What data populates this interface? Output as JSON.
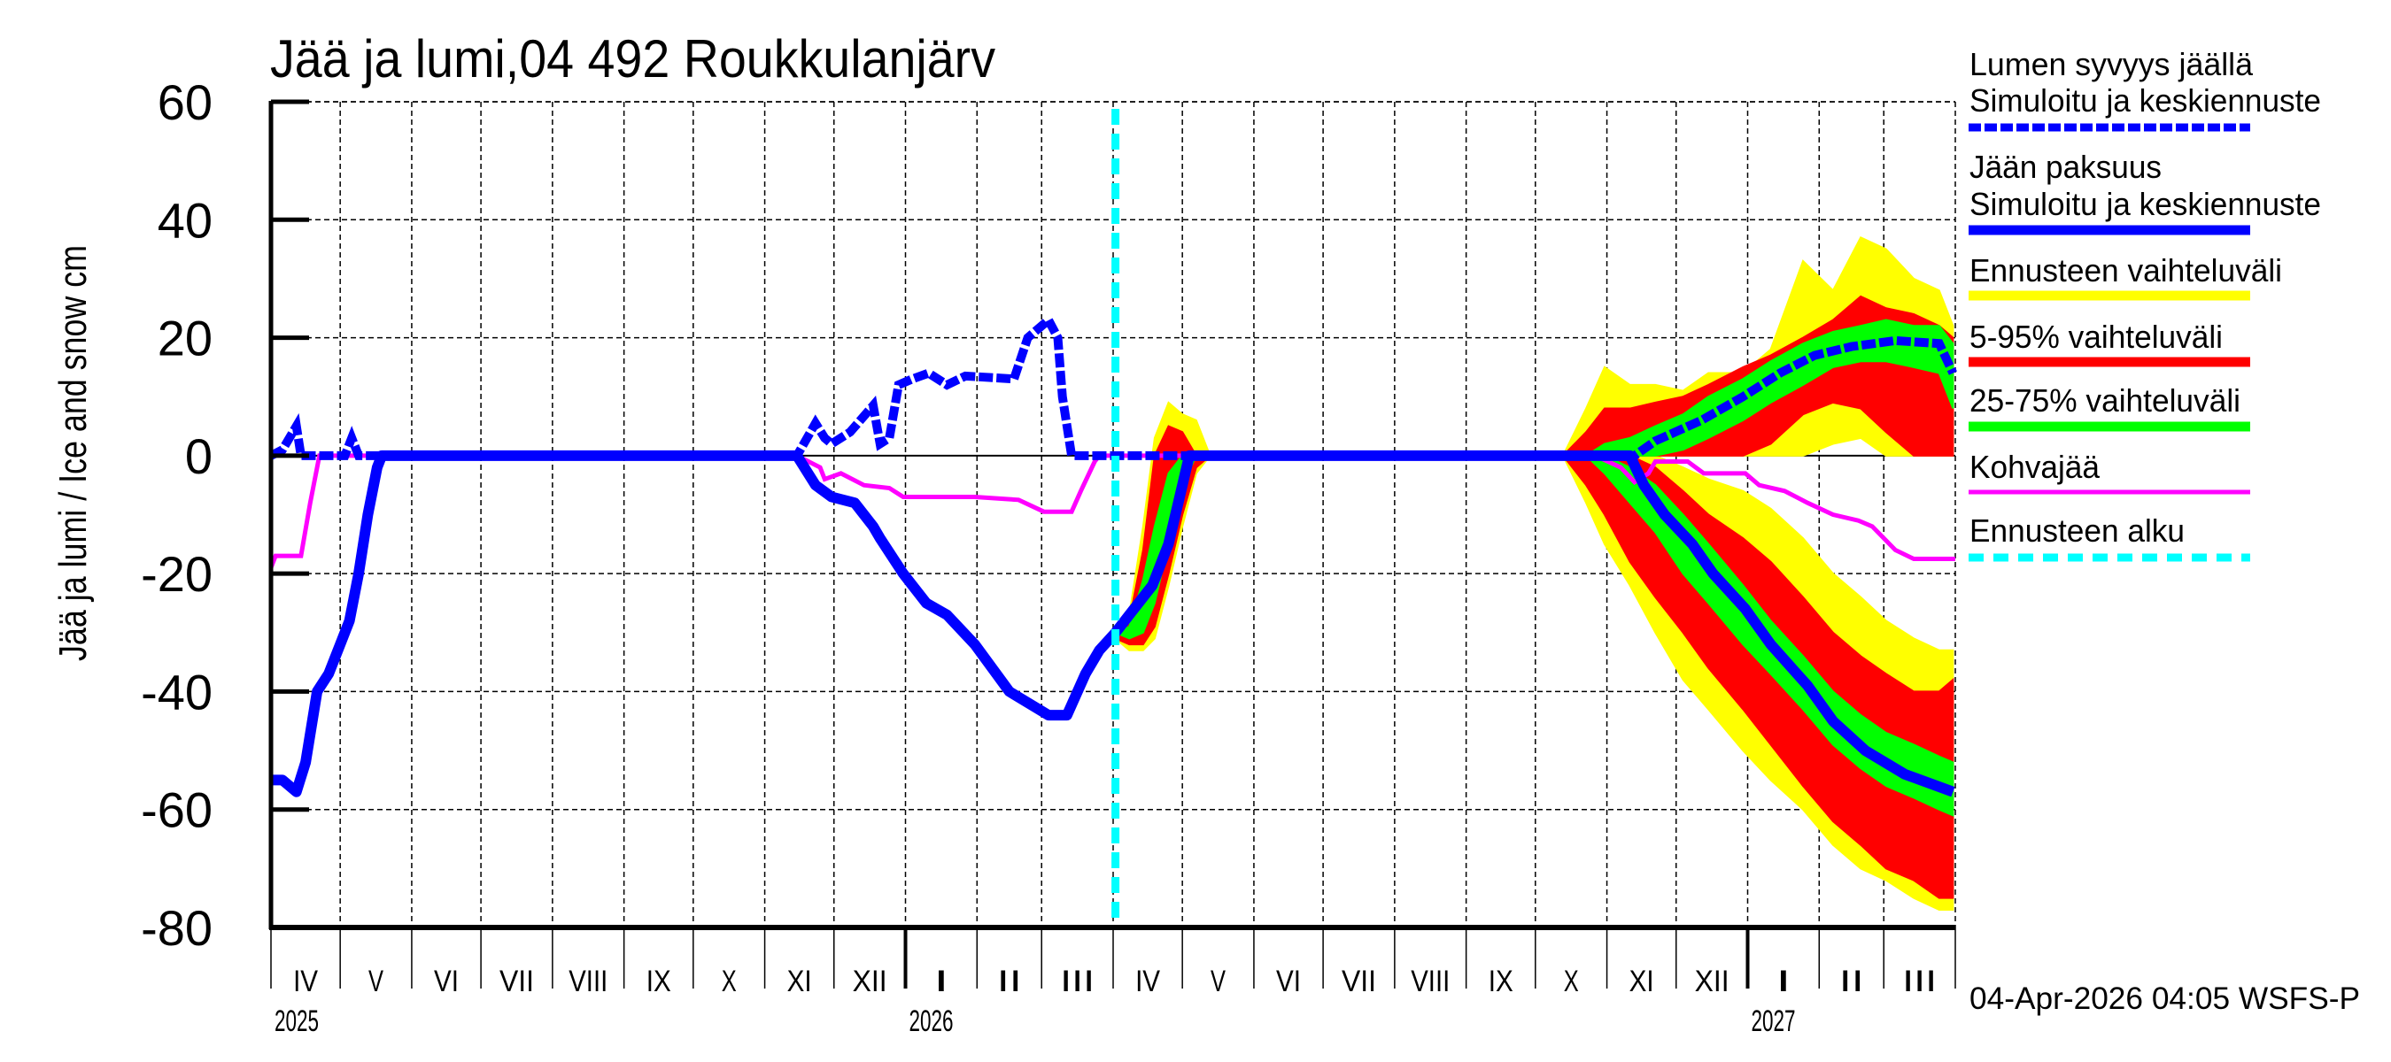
{
  "title": "Jää ja lumi,04 492 Roukkulanjärv",
  "y_axis_label": "Jää ja lumi / Ice and snow   cm",
  "timestamp": "04-Apr-2026 04:05 WSFS-P",
  "legend": [
    {
      "line1": "Lumen syvyys jäällä",
      "line2": "Simuloitu ja keskiennuste",
      "color": "#0000ff",
      "style": "dashed"
    },
    {
      "line1": "Jään paksuus",
      "line2": "Simuloitu ja keskiennuste",
      "color": "#0000ff",
      "style": "solid"
    },
    {
      "line1": "Ennusteen vaihteluväli",
      "color": "#ffff00",
      "style": "solid"
    },
    {
      "line1": "5-95% vaihteluväli",
      "color": "#ff0000",
      "style": "solid"
    },
    {
      "line1": "25-75% vaihteluväli",
      "color": "#00ff00",
      "style": "solid"
    },
    {
      "line1": "Kohvajää",
      "color": "#ff00ff",
      "style": "thin"
    },
    {
      "line1": "Ennusteen alku",
      "color": "#00ffff",
      "style": "dotted"
    }
  ],
  "colors": {
    "snow": "#0000ff",
    "ice": "#0000ff",
    "range_full": "#ffff00",
    "range_5_95": "#ff0000",
    "range_25_75": "#00ff00",
    "slush_ice": "#ff00ff",
    "forecast_start": "#00ffff"
  },
  "chart_data": {
    "type": "line",
    "title": "Jää ja lumi,04 492 Roukkulanjärv",
    "xlabel": "",
    "ylabel": "Jää ja lumi / Ice and snow   cm",
    "ylim": [
      -80,
      60
    ],
    "yticks": [
      60,
      40,
      20,
      0,
      -20,
      -40,
      -60,
      -80
    ],
    "grid": true,
    "legend_position": "right",
    "x_origin": "2025-04-01",
    "x_unit": "days since x_origin",
    "xlim": [
      0,
      730
    ],
    "forecast_start_day": 366,
    "month_ticks": [
      {
        "label": "IV",
        "days": 30
      },
      {
        "label": "V",
        "days": 31
      },
      {
        "label": "VI",
        "days": 30
      },
      {
        "label": "VII",
        "days": 31
      },
      {
        "label": "VIII",
        "days": 31
      },
      {
        "label": "IX",
        "days": 30
      },
      {
        "label": "X",
        "days": 31
      },
      {
        "label": "XI",
        "days": 30
      },
      {
        "label": "XII",
        "days": 31
      },
      {
        "label": "I",
        "days": 31
      },
      {
        "label": "II",
        "days": 28
      },
      {
        "label": "III",
        "days": 31
      },
      {
        "label": "IV",
        "days": 30
      },
      {
        "label": "V",
        "days": 31
      },
      {
        "label": "VI",
        "days": 30
      },
      {
        "label": "VII",
        "days": 31
      },
      {
        "label": "VIII",
        "days": 31
      },
      {
        "label": "IX",
        "days": 30
      },
      {
        "label": "X",
        "days": 31
      },
      {
        "label": "XI",
        "days": 30
      },
      {
        "label": "XII",
        "days": 31
      },
      {
        "label": "I",
        "days": 31
      },
      {
        "label": "II",
        "days": 28
      },
      {
        "label": "III",
        "days": 31
      }
    ],
    "year_labels": [
      {
        "label": "2025",
        "day": 0
      },
      {
        "label": "2026",
        "day": 275
      },
      {
        "label": "2027",
        "day": 640
      }
    ],
    "series": [
      {
        "name": "Lumen syvyys jäällä (Simuloitu ja keskiennuste)",
        "kind": "snow",
        "x": [
          0,
          5,
          11,
          13,
          32,
          35,
          38,
          228,
          236,
          240,
          243,
          251,
          261,
          264,
          268,
          272,
          278,
          285,
          293,
          301,
          322,
          328,
          337,
          341,
          343,
          347,
          591,
          600,
          620,
          638,
          654,
          669,
          685,
          704,
          723,
          729
        ],
        "y": [
          0,
          1,
          5,
          0,
          0,
          3,
          0,
          0,
          5.5,
          3,
          2,
          4,
          8.5,
          2,
          3,
          12,
          13,
          14,
          12,
          13.5,
          13,
          20,
          23,
          20,
          10,
          0,
          0,
          2.5,
          6,
          10,
          14,
          17,
          18.5,
          19.5,
          19,
          14
        ]
      },
      {
        "name": "Jään paksuus (Simuloitu ja keskiennuste)",
        "kind": "ice",
        "x": [
          0,
          5,
          11,
          15,
          20,
          25,
          30,
          34,
          38,
          42,
          46,
          48,
          228,
          236,
          243,
          253,
          261,
          264,
          274,
          284,
          293,
          305,
          320,
          337,
          345,
          353,
          359,
          366,
          372,
          382,
          389,
          395,
          398,
          589,
          595,
          604,
          616,
          625,
          639,
          650,
          666,
          677,
          691,
          708,
          729
        ],
        "y": [
          -55,
          -55,
          -57,
          -52,
          -40,
          -37,
          -32,
          -28,
          -20,
          -10,
          -2,
          0,
          0,
          -5,
          -7,
          -8,
          -12,
          -14,
          -20,
          -25,
          -27,
          -32,
          -40,
          -44,
          -44,
          -37,
          -33,
          -30,
          -27,
          -22,
          -15,
          -5,
          0,
          0,
          -5,
          -10,
          -15,
          -20,
          -26,
          -32,
          -39,
          -45,
          -50,
          -54,
          -57
        ]
      },
      {
        "name": "Kohvajää",
        "kind": "slush",
        "x": [
          0,
          2,
          13,
          17,
          21,
          228,
          238,
          240,
          247,
          257,
          268,
          274,
          305,
          324,
          335,
          347,
          351,
          357,
          359,
          574,
          585,
          591,
          597,
          600,
          614,
          621,
          639,
          645,
          656,
          666,
          677,
          688,
          694,
          704,
          712,
          730
        ],
        "y": [
          -19,
          -17,
          -17,
          -8,
          0,
          0,
          -2,
          -4,
          -3,
          -5,
          -5.5,
          -7,
          -7,
          -7.5,
          -9.5,
          -9.5,
          -6,
          -1,
          0,
          0,
          -2,
          -4.5,
          -3,
          -1,
          -1,
          -3,
          -3,
          -5,
          -6,
          -8,
          -10,
          -11,
          -12,
          -16,
          -17.5,
          -17.5
        ]
      }
    ],
    "bands": [
      {
        "name": "Ennusteen vaihteluväli",
        "color": "#ffff00",
        "segments": [
          {
            "x": [
              366,
              372,
              378,
              383,
              389,
              395,
              401,
              407
            ],
            "upper": [
              -30,
              -27,
              -12,
              3,
              9,
              7,
              6,
              0
            ],
            "lower": [
              -31,
              -33,
              -33,
              -31,
              -22,
              -12,
              -3,
              0
            ]
          },
          {
            "x": [
              560,
              570,
              578,
              589,
              600,
              612,
              623,
              638,
              650,
              664,
              677,
              689,
              700,
              712,
              723,
              729
            ],
            "upper": [
              0,
              8,
              15,
              12,
              12,
              11,
              14,
              14,
              18,
              33,
              28,
              37,
              35,
              30,
              28,
              22
            ],
            "lower": [
              0,
              0,
              0,
              0,
              0,
              0,
              0,
              0,
              0,
              0,
              2,
              3,
              0,
              0,
              0,
              0
            ]
          },
          {
            "x": [
              560,
              570,
              578,
              589,
              600,
              612,
              623,
              638,
              650,
              664,
              677,
              689,
              700,
              712,
              723,
              729
            ],
            "upper": [
              0,
              0,
              0,
              0,
              0,
              -2,
              -4,
              -6,
              -9,
              -14,
              -20,
              -24,
              -28,
              -31,
              -33,
              -33
            ],
            "lower": [
              0,
              -8,
              -15,
              -22,
              -30,
              -38,
              -43,
              -50,
              -55,
              -60,
              -66,
              -70,
              -72,
              -75,
              -77,
              -77
            ]
          }
        ]
      },
      {
        "name": "5-95% vaihteluväli",
        "color": "#ff0000",
        "segments": [
          {
            "x": [
              366,
              372,
              378,
              383,
              389,
              395,
              401,
              407
            ],
            "upper": [
              -30,
              -28,
              -16,
              0,
              5,
              4,
              0,
              0
            ],
            "lower": [
              -31,
              -32,
              -32,
              -29,
              -20,
              -10,
              -2,
              0
            ]
          },
          {
            "x": [
              560,
              570,
              578,
              589,
              600,
              612,
              623,
              638,
              650,
              664,
              677,
              689,
              700,
              712,
              723,
              729
            ],
            "upper": [
              0,
              4,
              8,
              8,
              9,
              10,
              12,
              15,
              17,
              20,
              23,
              27,
              25,
              24,
              22,
              20
            ],
            "lower": [
              0,
              0,
              0,
              0,
              0,
              0,
              0,
              0,
              2,
              7,
              9,
              8,
              4,
              0,
              0,
              0
            ]
          },
          {
            "x": [
              560,
              570,
              578,
              589,
              600,
              612,
              623,
              638,
              650,
              664,
              677,
              689,
              700,
              712,
              723,
              729
            ],
            "upper": [
              0,
              0,
              0,
              0,
              -2,
              -6,
              -10,
              -14,
              -18,
              -24,
              -30,
              -34,
              -37,
              -40,
              -40,
              -38
            ],
            "lower": [
              0,
              -5,
              -10,
              -18,
              -24,
              -30,
              -36,
              -43,
              -49,
              -56,
              -62,
              -66,
              -70,
              -72,
              -75,
              -75
            ]
          }
        ]
      },
      {
        "name": "25-75% vaihteluväli",
        "color": "#00ff00",
        "segments": [
          {
            "x": [
              366,
              372,
              378,
              383,
              389,
              395,
              401,
              407
            ],
            "upper": [
              -30,
              -29,
              -21,
              -12,
              -3,
              0,
              0,
              0
            ],
            "lower": [
              -30,
              -31,
              -30,
              -25,
              -15,
              -5,
              0,
              0
            ]
          },
          {
            "x": [
              560,
              570,
              578,
              589,
              600,
              612,
              623,
              638,
              650,
              664,
              677,
              689,
              700,
              712,
              723,
              729
            ],
            "upper": [
              0,
              0,
              2,
              3,
              5,
              7,
              10,
              13,
              16,
              19,
              21,
              22,
              23,
              22,
              22,
              19
            ],
            "lower": [
              0,
              0,
              0,
              0,
              0,
              1,
              3,
              6,
              9,
              12,
              15,
              16,
              16,
              15,
              14,
              8
            ]
          },
          {
            "x": [
              560,
              570,
              578,
              589,
              600,
              612,
              623,
              638,
              650,
              664,
              677,
              689,
              700,
              712,
              723,
              729
            ],
            "upper": [
              0,
              0,
              0,
              -2,
              -5,
              -10,
              -15,
              -22,
              -28,
              -34,
              -40,
              -44,
              -47,
              -49,
              -51,
              -52
            ],
            "lower": [
              0,
              0,
              -3,
              -8,
              -13,
              -20,
              -25,
              -32,
              -37,
              -43,
              -49,
              -53,
              -56,
              -58,
              -60,
              -61
            ]
          }
        ]
      }
    ]
  }
}
